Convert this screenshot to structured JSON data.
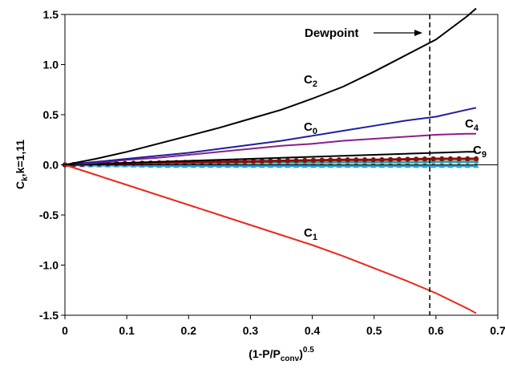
{
  "chart_data": {
    "type": "line",
    "xlabel": "(1-P/P",
    "xlabel_sub": "conv",
    "xlabel_sup": "0.5",
    "ylabel": "C",
    "ylabel_sub": "k",
    "ylabel_rest": ",k=1,11",
    "xlim": [
      0,
      0.7
    ],
    "ylim": [
      -1.5,
      1.5
    ],
    "xticks": [
      "0",
      "0.1",
      "0.2",
      "0.3",
      "0.4",
      "0.5",
      "0.6",
      "0.7"
    ],
    "yticks": [
      "-1.5",
      "-1.0",
      "-0.5",
      "0.0",
      "0.5",
      "1.0",
      "1.5"
    ],
    "x_values": [
      0,
      0.05,
      0.1,
      0.15,
      0.2,
      0.25,
      0.3,
      0.35,
      0.4,
      0.45,
      0.5,
      0.55,
      0.6,
      0.65,
      0.665
    ],
    "series": [
      {
        "name": "C0",
        "label_main": "C",
        "label_sub": "0",
        "color": "#1f1fa0",
        "values": [
          0,
          0.03,
          0.06,
          0.09,
          0.12,
          0.16,
          0.2,
          0.24,
          0.29,
          0.34,
          0.39,
          0.44,
          0.48,
          0.55,
          0.57
        ]
      },
      {
        "name": "C1",
        "label_main": "C",
        "label_sub": "1",
        "color": "#e8291c",
        "values": [
          0,
          -0.1,
          -0.2,
          -0.3,
          -0.4,
          -0.5,
          -0.6,
          -0.7,
          -0.8,
          -0.91,
          -1.03,
          -1.15,
          -1.28,
          -1.43,
          -1.48
        ]
      },
      {
        "name": "C2",
        "label_main": "C",
        "label_sub": "2",
        "color": "#000000",
        "values": [
          0,
          0.06,
          0.13,
          0.21,
          0.29,
          0.37,
          0.46,
          0.55,
          0.66,
          0.78,
          0.93,
          1.09,
          1.25,
          1.48,
          1.56
        ]
      },
      {
        "name": "C4",
        "label_main": "C",
        "label_sub": "4",
        "color": "#8a1f8a",
        "values": [
          0,
          0.02,
          0.05,
          0.07,
          0.1,
          0.13,
          0.16,
          0.19,
          0.21,
          0.24,
          0.26,
          0.28,
          0.3,
          0.31,
          0.31
        ]
      },
      {
        "name": "C9",
        "label_main": "C",
        "label_sub": "9",
        "color": "#000000",
        "values": [
          0,
          0.01,
          0.02,
          0.03,
          0.04,
          0.05,
          0.06,
          0.07,
          0.08,
          0.09,
          0.1,
          0.11,
          0.12,
          0.13,
          0.13
        ]
      },
      {
        "name": "",
        "color": "#8b0f0f",
        "marker": "circle",
        "values": [
          0,
          0.01,
          0.015,
          0.02,
          0.025,
          0.03,
          0.035,
          0.04,
          0.045,
          0.05,
          0.05,
          0.055,
          0.06,
          0.06,
          0.06
        ]
      },
      {
        "name": "",
        "color": "#2fa8a8",
        "marker": "circle",
        "values": [
          0,
          0.005,
          0.01,
          0.01,
          0.015,
          0.015,
          0.02,
          0.02,
          0.02,
          0.025,
          0.025,
          0.025,
          0.03,
          0.03,
          0.03
        ]
      },
      {
        "name": "",
        "color": "#2f9fdf",
        "marker": "triangle",
        "values": [
          0,
          -0.005,
          -0.005,
          -0.01,
          -0.01,
          -0.01,
          -0.01,
          -0.01,
          -0.01,
          -0.01,
          -0.01,
          -0.01,
          -0.01,
          -0.01,
          -0.01
        ]
      }
    ],
    "dewpoint": {
      "label": "Dewpoint",
      "x": 0.59
    },
    "grid": false,
    "legend": "none"
  }
}
